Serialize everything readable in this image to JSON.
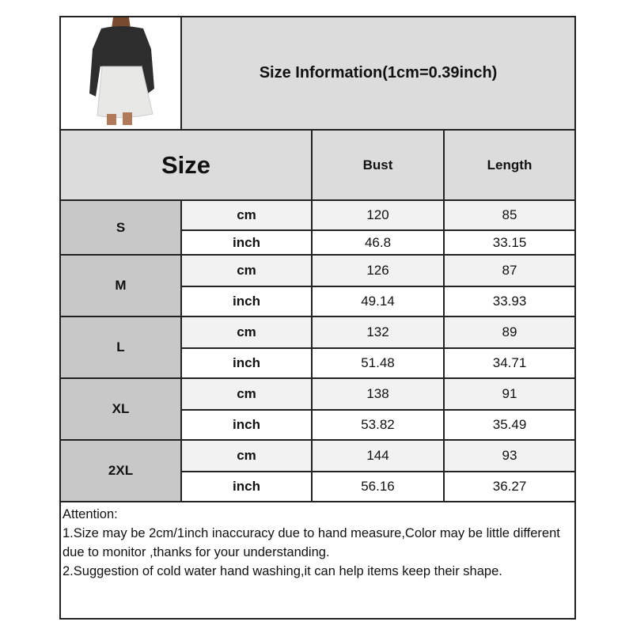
{
  "title": "Size Information(1cm=0.39inch)",
  "headers": {
    "size": "Size",
    "bust": "Bust",
    "length": "Length"
  },
  "product_image": "woman-wearing-black-sweatshirt-top-white-pleated-skirt-dress",
  "rows": [
    {
      "size": "S",
      "cm": {
        "unit": "cm",
        "bust": "120",
        "length": "85"
      },
      "inch": {
        "unit": "inch",
        "bust": "46.8",
        "length": "33.15"
      }
    },
    {
      "size": "M",
      "cm": {
        "unit": "cm",
        "bust": "126",
        "length": "87"
      },
      "inch": {
        "unit": "inch",
        "bust": "49.14",
        "length": "33.93"
      }
    },
    {
      "size": "L",
      "cm": {
        "unit": "cm",
        "bust": "132",
        "length": "89"
      },
      "inch": {
        "unit": "inch",
        "bust": "51.48",
        "length": "34.71"
      }
    },
    {
      "size": "XL",
      "cm": {
        "unit": "cm",
        "bust": "138",
        "length": "91"
      },
      "inch": {
        "unit": "inch",
        "bust": "53.82",
        "length": "35.49"
      }
    },
    {
      "size": "2XL",
      "cm": {
        "unit": "cm",
        "bust": "144",
        "length": "93"
      },
      "inch": {
        "unit": "inch",
        "bust": "56.16",
        "length": "36.27"
      }
    }
  ],
  "attention": {
    "heading": "Attention:",
    "lines": [
      "1.Size may be 2cm/1inch inaccuracy due to hand measure,Color may be little different due to monitor ,thanks for your understanding.",
      "2.Suggestion of cold water hand washing,it can help items keep their shape."
    ]
  }
}
